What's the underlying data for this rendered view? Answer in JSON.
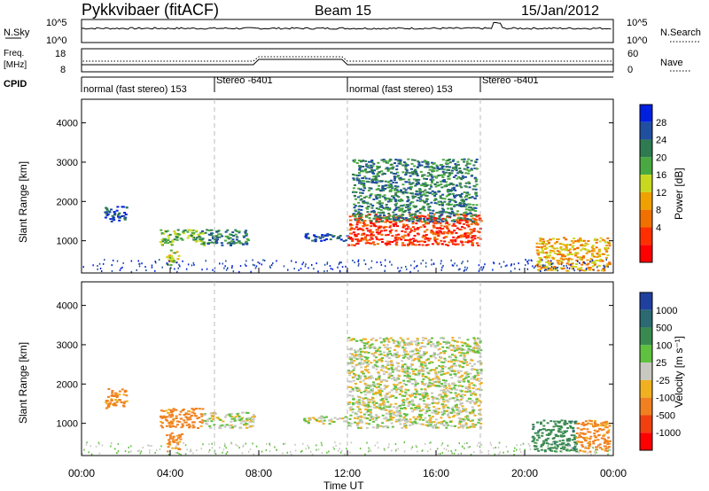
{
  "header": {
    "title_left": "Pykkvibaer (fitACF)",
    "title_center": "Beam 15",
    "title_right": "15/Jan/2012"
  },
  "noise_panel": {
    "left_label": "N.Sky",
    "left_ticks": [
      "10^5",
      "10^0"
    ],
    "right_ticks": [
      "10^5",
      "10^0"
    ],
    "right_label": "N.Search"
  },
  "freq_panel": {
    "left_label_1": "Freq.",
    "left_label_2": "[MHz]",
    "left_ticks": [
      "18",
      "8"
    ],
    "right_ticks": [
      "60",
      "0"
    ],
    "right_label": "Nave"
  },
  "cpid": {
    "label": "CPID",
    "segments": [
      {
        "start_hour": 0,
        "end_hour": 6,
        "text": "normal (fast stereo) 153"
      },
      {
        "start_hour": 6,
        "end_hour": 12,
        "text": "Stereo -6401"
      },
      {
        "start_hour": 12,
        "end_hour": 18,
        "text": "normal (fast stereo) 153"
      },
      {
        "start_hour": 18,
        "end_hour": 24,
        "text": "Stereo -6401"
      }
    ]
  },
  "x_axis": {
    "label": "Time UT",
    "ticks": [
      "00:00",
      "04:00",
      "08:00",
      "12:00",
      "16:00",
      "20:00",
      "00:00"
    ]
  },
  "power_panel": {
    "ylabel": "Slant Range [km]",
    "yticks": [
      "4000",
      "3000",
      "2000",
      "1000"
    ],
    "colorbar_label": "Power [dB]",
    "colorbar_ticks": [
      "28",
      "24",
      "20",
      "16",
      "12",
      "8",
      "4"
    ],
    "colors": [
      "#0020e0",
      "#204fa0",
      "#2f7a50",
      "#4aa840",
      "#c8d820",
      "#f0a000",
      "#f07000",
      "#ff3000",
      "#ff0000"
    ]
  },
  "velocity_panel": {
    "ylabel": "Slant Range [km]",
    "yticks": [
      "4000",
      "3000",
      "2000",
      "1000"
    ],
    "colorbar_label": "Velocity [m s⁻¹]",
    "colorbar_ticks": [
      "1000",
      "500",
      "100",
      "25",
      "-25",
      "-100",
      "-500",
      "-1000"
    ],
    "colors": [
      "#2040a0",
      "#2a6a70",
      "#3a8a50",
      "#60c040",
      "#c8c8c0",
      "#f0b020",
      "#f08020",
      "#f04010",
      "#ff0000"
    ]
  },
  "chart_data": {
    "type": "heatmap",
    "x_range_hours": [
      0,
      24
    ],
    "y_range_km": [
      180,
      4600
    ],
    "mode_change_hours": [
      6,
      12,
      18
    ],
    "power_regions": [
      {
        "t0": 1.0,
        "t1": 2.0,
        "r0": 1500,
        "r1": 1900,
        "level": 1
      },
      {
        "t0": 3.5,
        "t1": 5.5,
        "r0": 900,
        "r1": 1300,
        "level": 3
      },
      {
        "t0": 3.8,
        "t1": 4.4,
        "r0": 400,
        "r1": 800,
        "level": 4
      },
      {
        "t0": 5.4,
        "t1": 7.5,
        "r0": 900,
        "r1": 1300,
        "level": 2
      },
      {
        "t0": 10.0,
        "t1": 12.0,
        "r0": 1000,
        "r1": 1200,
        "level": 1
      },
      {
        "t0": 12.0,
        "t1": 18.0,
        "r0": 900,
        "r1": 1700,
        "level": 7
      },
      {
        "t0": 12.2,
        "t1": 17.8,
        "r0": 1500,
        "r1": 3100,
        "level": 2
      },
      {
        "t0": 20.5,
        "t1": 23.8,
        "r0": 250,
        "r1": 1100,
        "level": 5
      }
    ],
    "velocity_regions": [
      {
        "t0": 1.0,
        "t1": 2.0,
        "r0": 1400,
        "r1": 1900,
        "value": -100
      },
      {
        "t0": 3.5,
        "t1": 5.5,
        "r0": 900,
        "r1": 1400,
        "value": -100
      },
      {
        "t0": 3.8,
        "t1": 4.5,
        "r0": 300,
        "r1": 800,
        "value": -100
      },
      {
        "t0": 5.5,
        "t1": 7.8,
        "r0": 900,
        "r1": 1300,
        "value": 0
      },
      {
        "t0": 10.0,
        "t1": 12.0,
        "r0": 1000,
        "r1": 1200,
        "value": 0
      },
      {
        "t0": 12.0,
        "t1": 18.0,
        "r0": 900,
        "r1": 3200,
        "value": 0
      },
      {
        "t0": 20.3,
        "t1": 22.3,
        "r0": 300,
        "r1": 1100,
        "value": 250
      },
      {
        "t0": 22.3,
        "t1": 23.8,
        "r0": 300,
        "r1": 1100,
        "value": -100
      }
    ]
  }
}
